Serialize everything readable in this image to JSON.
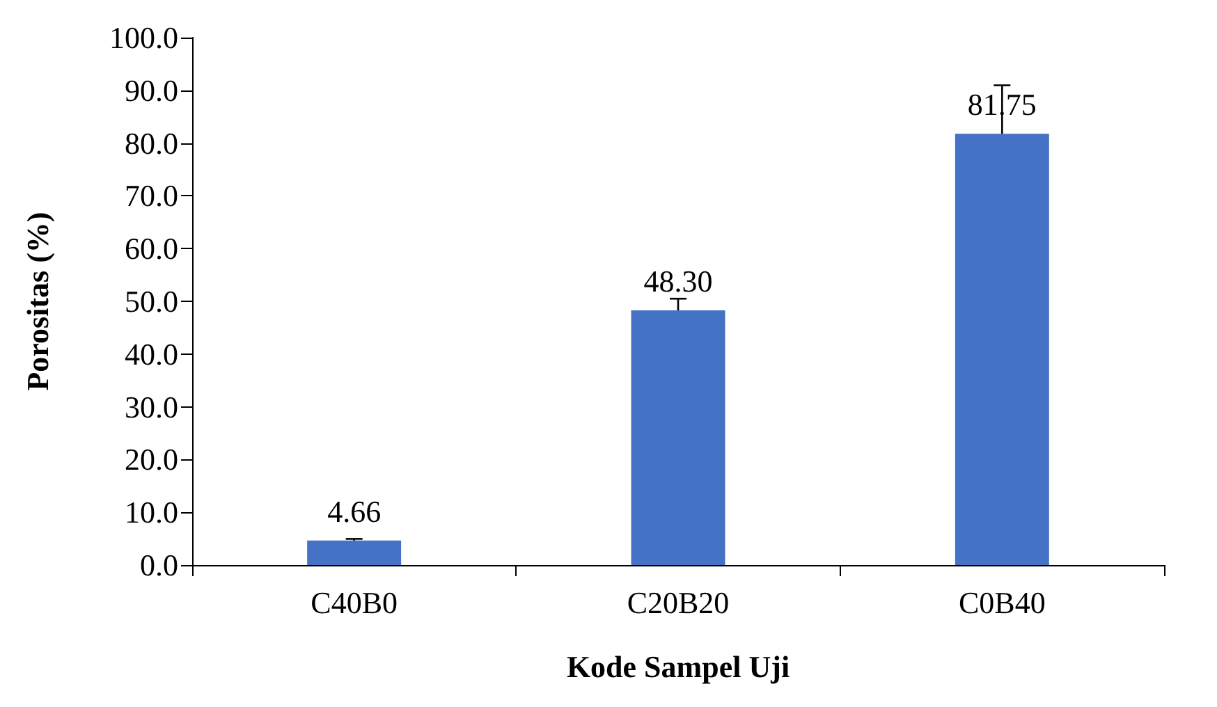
{
  "chart_data": {
    "type": "bar",
    "xlabel": "Kode Sampel Uji",
    "ylabel": "Porositas (%)",
    "categories": [
      "C40B0",
      "C20B20",
      "C0B40"
    ],
    "values": [
      4.66,
      48.3,
      81.75
    ],
    "value_labels": [
      "4.66",
      "48.30",
      "81.75"
    ],
    "errors": [
      0.3,
      2.2,
      9.2
    ],
    "color": "#4472c4",
    "ylim": [
      0,
      100
    ],
    "yticks": [
      {
        "value": 0,
        "label": "0.0"
      },
      {
        "value": 10,
        "label": "10.0"
      },
      {
        "value": 20,
        "label": "20.0"
      },
      {
        "value": 30,
        "label": "30.0"
      },
      {
        "value": 40,
        "label": "40.0"
      },
      {
        "value": 50,
        "label": "50.0"
      },
      {
        "value": 60,
        "label": "60.0"
      },
      {
        "value": 70,
        "label": "70.0"
      },
      {
        "value": 80,
        "label": "80.0"
      },
      {
        "value": 90,
        "label": "90.0"
      },
      {
        "value": 100,
        "label": "100.0"
      }
    ],
    "grid": false
  }
}
